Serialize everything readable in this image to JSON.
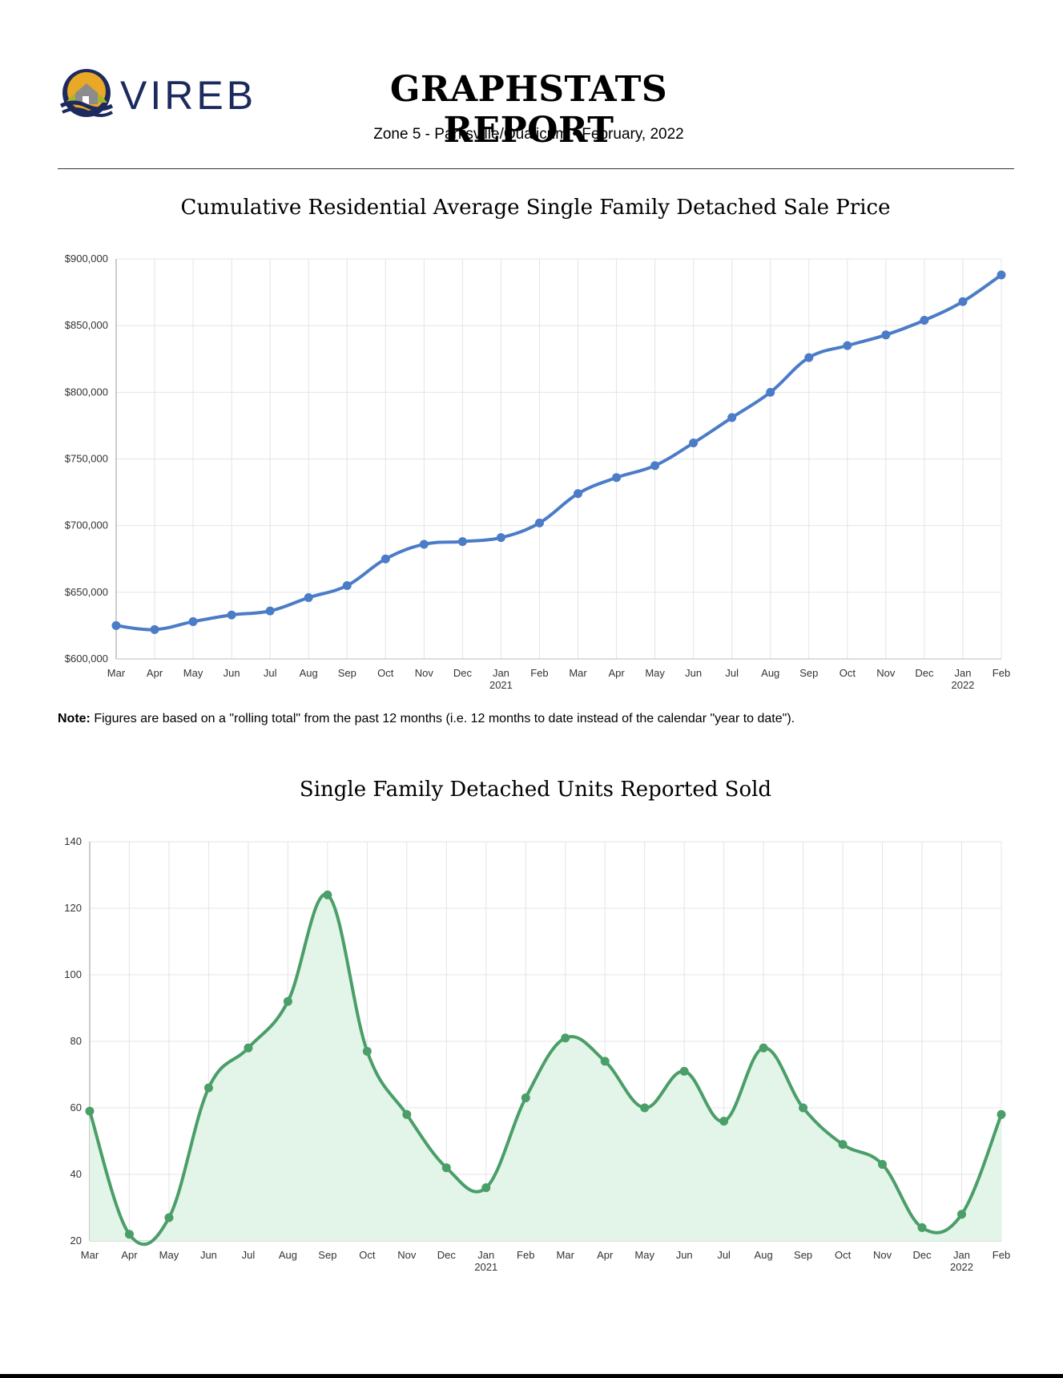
{
  "header": {
    "brand": "VIREB",
    "title": "GRAPHSTATS REPORT",
    "subtitle": "Zone 5 - Parksville/Qualicum  •  February, 2022"
  },
  "note": {
    "label": "Note:",
    "text": " Figures are based on a \"rolling total\" from the past 12 months (i.e. 12 months to date instead of the calendar \"year to date\")."
  },
  "colors": {
    "price_line": "#4a7cc7",
    "units_line": "#4a9e68",
    "units_fill": "#e3f4e9",
    "grid": "#e4e4e4",
    "axis": "#bbbbbb"
  },
  "chart_data": [
    {
      "type": "line",
      "title": "Cumulative Residential Average Single Family Detached Sale Price",
      "categories": [
        "Mar",
        "Apr",
        "May",
        "Jun",
        "Jul",
        "Aug",
        "Sep",
        "Oct",
        "Nov",
        "Dec",
        "Jan",
        "Feb",
        "Mar",
        "Apr",
        "May",
        "Jun",
        "Jul",
        "Aug",
        "Sep",
        "Oct",
        "Nov",
        "Dec",
        "Jan",
        "Feb"
      ],
      "year_labels": [
        "",
        "",
        "",
        "",
        "",
        "",
        "",
        "",
        "",
        "",
        "2021",
        "",
        "",
        "",
        "",
        "",
        "",
        "",
        "",
        "",
        "",
        "",
        "2022",
        ""
      ],
      "y_ticks": [
        "$600,000",
        "$650,000",
        "$700,000",
        "$750,000",
        "$800,000",
        "$850,000",
        "$900,000"
      ],
      "ylim": [
        600000,
        900000
      ],
      "grid": true,
      "series": [
        {
          "values": [
            625000,
            622000,
            628000,
            633000,
            636000,
            646000,
            655000,
            675000,
            686000,
            688000,
            691000,
            702000,
            724000,
            736000,
            745000,
            762000,
            781000,
            800000,
            826000,
            835000,
            843000,
            854000,
            868000,
            888000
          ]
        }
      ]
    },
    {
      "type": "area",
      "title": "Single Family Detached Units Reported Sold",
      "categories": [
        "Mar",
        "Apr",
        "May",
        "Jun",
        "Jul",
        "Aug",
        "Sep",
        "Oct",
        "Nov",
        "Dec",
        "Jan",
        "Feb",
        "Mar",
        "Apr",
        "May",
        "Jun",
        "Jul",
        "Aug",
        "Sep",
        "Oct",
        "Nov",
        "Dec",
        "Jan",
        "Feb"
      ],
      "year_labels": [
        "",
        "",
        "",
        "",
        "",
        "",
        "",
        "",
        "",
        "",
        "2021",
        "",
        "",
        "",
        "",
        "",
        "",
        "",
        "",
        "",
        "",
        "",
        "2022",
        ""
      ],
      "y_ticks": [
        "20",
        "40",
        "60",
        "80",
        "100",
        "120",
        "140"
      ],
      "ylim": [
        20,
        140
      ],
      "grid": true,
      "series": [
        {
          "values": [
            59,
            22,
            27,
            66,
            78,
            92,
            124,
            77,
            58,
            42,
            36,
            63,
            81,
            74,
            60,
            71,
            56,
            78,
            60,
            49,
            43,
            24,
            28,
            58
          ]
        }
      ]
    }
  ]
}
